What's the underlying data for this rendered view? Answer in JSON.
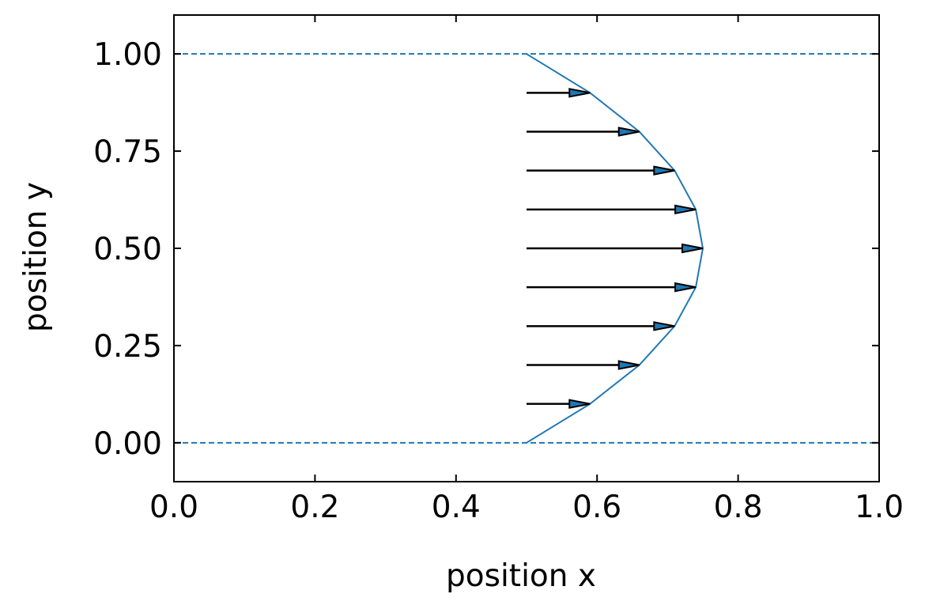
{
  "chart_data": {
    "type": "line",
    "xlabel": "position x",
    "ylabel": "position y",
    "xlim": [
      0.0,
      1.0
    ],
    "ylim": [
      -0.1,
      1.1
    ],
    "x_ticks": [
      "0.0",
      "0.2",
      "0.4",
      "0.6",
      "0.8",
      "1.0"
    ],
    "y_ticks": [
      "0.00",
      "0.25",
      "0.50",
      "0.75",
      "1.00"
    ],
    "grid": false,
    "legend": "none",
    "walls": {
      "y": [
        0.0,
        1.0
      ],
      "style": "dashed",
      "color": "#1f77b4"
    },
    "arrows": {
      "x_start": 0.5,
      "y": [
        0.1,
        0.2,
        0.3,
        0.4,
        0.5,
        0.6,
        0.7,
        0.8,
        0.9
      ],
      "x_end": [
        0.59,
        0.66,
        0.71,
        0.74,
        0.75,
        0.74,
        0.71,
        0.66,
        0.59
      ],
      "color": "#1f77b4"
    },
    "profile": {
      "x": [
        0.5,
        0.59,
        0.66,
        0.71,
        0.74,
        0.75,
        0.74,
        0.71,
        0.66,
        0.59,
        0.5
      ],
      "y": [
        0.0,
        0.1,
        0.2,
        0.3,
        0.4,
        0.5,
        0.6,
        0.7,
        0.8,
        0.9,
        1.0
      ],
      "color": "#1f77b4"
    }
  }
}
